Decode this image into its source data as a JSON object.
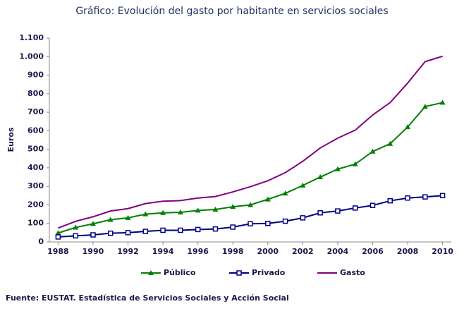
{
  "chart_data": {
    "type": "line",
    "title": "Gráfico: Evolución del gasto por habitante en servicios sociales",
    "y_label": "Euros",
    "source": "Fuente: EUSTAT. Estadística de Servicios Sociales y Acción Social",
    "x": [
      1988,
      1989,
      1990,
      1991,
      1992,
      1993,
      1994,
      1995,
      1996,
      1997,
      1998,
      1999,
      2000,
      2001,
      2002,
      2003,
      2004,
      2005,
      2006,
      2007,
      2008,
      2009,
      2010
    ],
    "series": [
      {
        "name": "Público",
        "color": "#008000",
        "marker": "triangle",
        "values": [
          48,
          78,
          98,
          120,
          130,
          150,
          157,
          160,
          170,
          175,
          190,
          200,
          230,
          262,
          305,
          350,
          393,
          420,
          488,
          530,
          620,
          730,
          752
        ]
      },
      {
        "name": "Privado",
        "color": "#000080",
        "marker": "square",
        "values": [
          27,
          33,
          38,
          47,
          50,
          57,
          63,
          63,
          67,
          70,
          80,
          98,
          100,
          112,
          130,
          157,
          167,
          183,
          197,
          222,
          237,
          243,
          250
        ]
      },
      {
        "name": "Gasto",
        "color": "#800080",
        "marker": null,
        "values": [
          75,
          111,
          136,
          167,
          180,
          207,
          220,
          223,
          237,
          245,
          270,
          298,
          330,
          374,
          435,
          507,
          560,
          603,
          685,
          752,
          857,
          973,
          1002
        ]
      }
    ],
    "xlim": [
      1987.5,
      2010.5
    ],
    "xticks": [
      1988,
      1990,
      1992,
      1994,
      1996,
      1998,
      2000,
      2002,
      2004,
      2006,
      2008,
      2010
    ],
    "ylim": [
      0,
      1100
    ],
    "yticks": [
      0,
      100,
      200,
      300,
      400,
      500,
      600,
      700,
      800,
      900,
      {
        "value": 1000,
        "label": "1.000"
      },
      {
        "value": 1100,
        "label": "1.100"
      }
    ],
    "grid": false,
    "legend": "bottom"
  }
}
